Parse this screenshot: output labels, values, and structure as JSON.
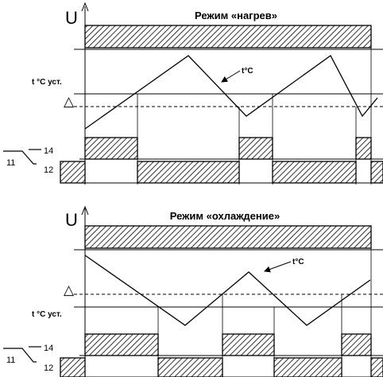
{
  "panels": {
    "heating": {
      "title": "Режим «нагрев»",
      "axis_label": "U",
      "temp_label": "t°C",
      "setpoint_label": "t °C уст.",
      "hysteresis_symbol": "△",
      "relay_common": "11",
      "relay_no": "14",
      "relay_nc": "12"
    },
    "cooling": {
      "title": "Режим «охлаждение»",
      "axis_label": "U",
      "temp_label": "t°C",
      "setpoint_label": "t °C уст.",
      "hysteresis_symbol": "△",
      "relay_common": "11",
      "relay_no": "14",
      "relay_nc": "12"
    }
  },
  "colors": {
    "line": "#000000",
    "hatch_fill": "#ffffff"
  }
}
